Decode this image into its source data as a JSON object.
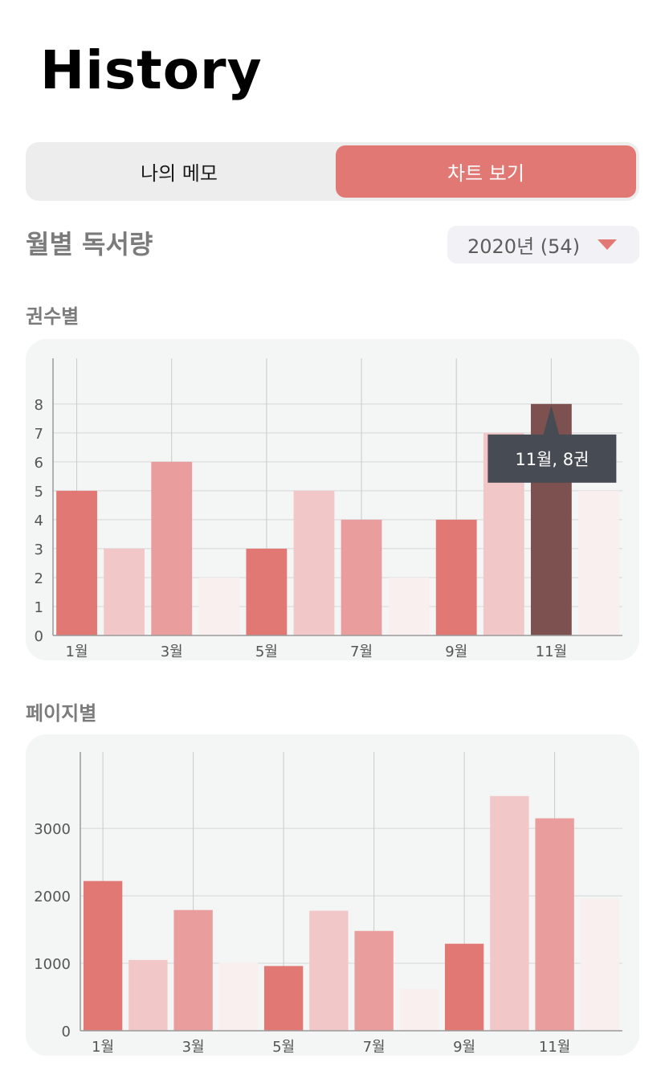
{
  "header": {
    "title": "History"
  },
  "tabs": {
    "memo_label": "나의 메모",
    "chart_label": "차트 보기"
  },
  "section": {
    "title": "월별 독서량"
  },
  "year_select": {
    "value": "2020년 (54)"
  },
  "colors": {
    "accent": "#e27874",
    "palette": [
      "#e27874",
      "#f2c7c7",
      "#e99e9d",
      "#f9efee"
    ],
    "highlight": "#7c5150",
    "tooltip_bg": "#474b53"
  },
  "chart_data": [
    {
      "type": "bar",
      "subtitle": "권수별",
      "categories": [
        "1월",
        "2월",
        "3월",
        "4월",
        "5월",
        "6월",
        "7월",
        "8월",
        "9월",
        "10월",
        "11월",
        "12월"
      ],
      "tick_labels": [
        "1월",
        "3월",
        "5월",
        "7월",
        "9월",
        "11월"
      ],
      "values": [
        5,
        3,
        6,
        2,
        3,
        5,
        4,
        2,
        4,
        7,
        8,
        5
      ],
      "yticks": [
        0,
        1,
        2,
        3,
        4,
        5,
        6,
        7,
        8
      ],
      "ylim": [
        0,
        8.8
      ],
      "selected_index": 10,
      "tooltip": "11월, 8권",
      "grid": true
    },
    {
      "type": "bar",
      "subtitle": "페이지별",
      "categories": [
        "1월",
        "2월",
        "3월",
        "4월",
        "5월",
        "6월",
        "7월",
        "8월",
        "9월",
        "10월",
        "11월",
        "12월"
      ],
      "tick_labels": [
        "1월",
        "3월",
        "5월",
        "7월",
        "9월",
        "11월"
      ],
      "values": [
        2220,
        1050,
        1790,
        1010,
        960,
        1780,
        1480,
        620,
        1290,
        3480,
        3150,
        1960
      ],
      "yticks": [
        0,
        1000,
        2000,
        3000
      ],
      "ylim": [
        0,
        3800
      ],
      "grid": true
    }
  ]
}
